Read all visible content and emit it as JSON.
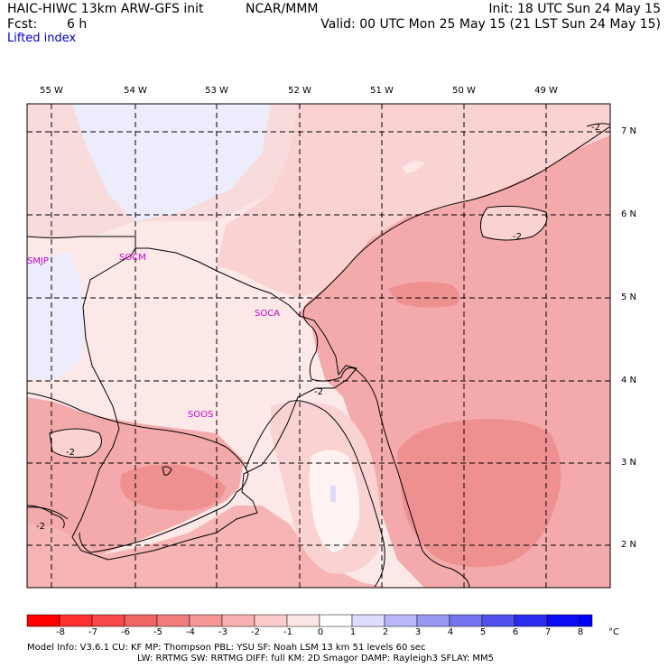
{
  "header": {
    "title": "HAIC-HIWC 13km ARW-GFS init",
    "org": "NCAR/MMM",
    "init": "Init: 18 UTC Sun 24 May 15",
    "fcst_label": "Fcst:",
    "fcst_value": "6 h",
    "valid": "Valid: 00 UTC Mon 25 May 15 (21 LST Sun 24 May 15)",
    "field": "Lifted index"
  },
  "map": {
    "lon_labels": [
      "55 W",
      "54 W",
      "53 W",
      "52 W",
      "51 W",
      "50 W",
      "49 W"
    ],
    "lat_labels": [
      "7 N",
      "6 N",
      "5 N",
      "4 N",
      "3 N",
      "2 N"
    ],
    "stations": [
      "SMJP",
      "SOCM",
      "SOCA",
      "SOOS"
    ],
    "contour_labels": [
      "-2",
      "-2",
      "-2",
      "-2",
      "-2"
    ],
    "colors": {
      "land_fill": "#f8cccc",
      "mid_red": "#f4a8a8",
      "deep_red": "#ee8e8e",
      "pale": "#fde8e8",
      "blue_pale": "#ececfc",
      "grid": "#000000",
      "station": "#cc00cc"
    }
  },
  "colorbar": {
    "labels": [
      "-8",
      "-7",
      "-6",
      "-5",
      "-4",
      "-3",
      "-2",
      "-1",
      "0",
      "1",
      "2",
      "3",
      "4",
      "5",
      "6",
      "7",
      "8"
    ],
    "unit": "°C",
    "colors": [
      "#ff0000",
      "#ff3030",
      "#f84848",
      "#f06464",
      "#f07c7c",
      "#f49696",
      "#f8b0b0",
      "#fccccc",
      "#fde6e6",
      "#ffffff",
      "#dcdcfc",
      "#b8b8f8",
      "#9898f4",
      "#7474f0",
      "#5050ec",
      "#2c2cf0",
      "#0c0cf4",
      "#0000ff"
    ]
  },
  "footer": {
    "line1": "Model Info: V3.6.1    CU: KF    MP: Thompson    PBL: YSU    SF: Noah LSM    13 km  51 levels  60 sec",
    "line2": "LW: RRTMG    SW: RRTMG    DIFF: full    KM: 2D Smagor DAMP: Rayleigh3   SFLAY: MM5"
  }
}
